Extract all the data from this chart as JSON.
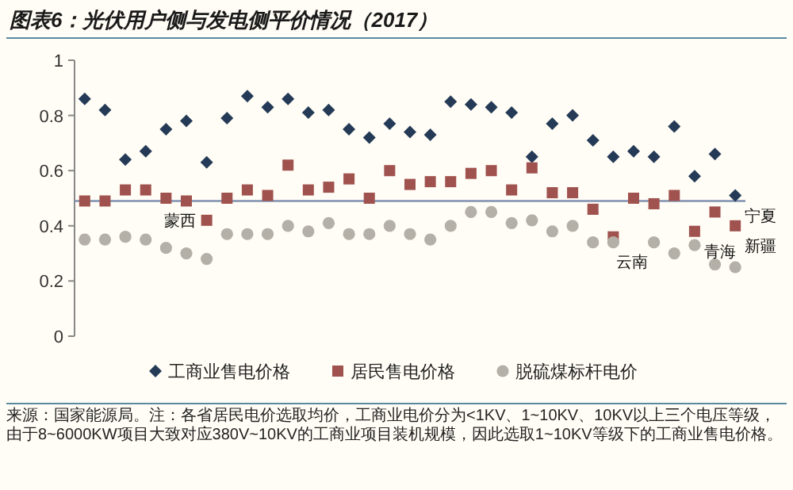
{
  "chart_data": {
    "type": "scatter",
    "title": "图表6：光伏用户侧与发电侧平价情况（2017）",
    "categories": [
      null,
      null,
      null,
      null,
      null,
      null,
      null,
      null,
      null,
      null,
      null,
      null,
      null,
      null,
      null,
      null,
      null,
      null,
      null,
      null,
      null,
      null,
      null,
      null,
      null,
      null,
      null,
      null,
      null,
      null,
      null,
      null,
      null
    ],
    "series": [
      {
        "name": "工商业售电价格",
        "color": "#243a56",
        "marker": "diamond",
        "values": [
          0.86,
          0.82,
          0.64,
          0.67,
          0.75,
          0.78,
          0.63,
          0.79,
          0.87,
          0.83,
          0.86,
          0.81,
          0.82,
          0.75,
          0.72,
          0.77,
          0.74,
          0.73,
          0.85,
          0.84,
          0.83,
          0.81,
          0.65,
          0.77,
          0.8,
          0.71,
          0.65,
          0.67,
          0.65,
          0.76,
          0.58,
          0.66,
          0.51
        ],
        "value_labels": [
          null,
          null,
          null,
          null,
          null,
          null,
          null,
          null,
          null,
          null,
          null,
          null,
          null,
          null,
          null,
          null,
          null,
          null,
          null,
          null,
          null,
          null,
          null,
          null,
          null,
          null,
          null,
          null,
          null,
          null,
          null,
          null,
          "宁夏"
        ]
      },
      {
        "name": "居民售电价格",
        "color": "#a0524f",
        "marker": "square",
        "values": [
          0.49,
          0.49,
          0.53,
          0.53,
          0.5,
          0.49,
          0.42,
          0.5,
          0.53,
          0.51,
          0.62,
          0.53,
          0.54,
          0.57,
          0.5,
          0.6,
          0.55,
          0.56,
          0.56,
          0.59,
          0.6,
          0.53,
          0.61,
          0.52,
          0.52,
          0.46,
          0.36,
          0.5,
          0.48,
          0.51,
          0.38,
          0.45,
          0.4
        ],
        "value_labels": [
          null,
          null,
          null,
          null,
          null,
          null,
          "蒙西",
          null,
          null,
          null,
          null,
          null,
          null,
          null,
          null,
          null,
          null,
          null,
          null,
          null,
          null,
          null,
          null,
          null,
          null,
          null,
          "云南",
          null,
          null,
          null,
          "青海",
          null,
          "新疆"
        ]
      },
      {
        "name": "脱硫煤标杆电价",
        "color": "#b4b0a8",
        "marker": "circle",
        "values": [
          0.35,
          0.35,
          0.36,
          0.35,
          0.32,
          0.3,
          0.28,
          0.37,
          0.37,
          0.37,
          0.4,
          0.38,
          0.41,
          0.37,
          0.37,
          0.4,
          0.37,
          0.35,
          0.4,
          0.45,
          0.45,
          0.41,
          0.42,
          0.38,
          0.4,
          0.34,
          0.34,
          null,
          0.34,
          0.3,
          0.33,
          0.26,
          0.25
        ]
      }
    ],
    "ylim": [
      0,
      1
    ],
    "yticks": [
      0,
      0.2,
      0.4,
      0.6,
      0.8,
      1
    ],
    "tick_labels": "y",
    "grid": false,
    "legend": "bottom",
    "ref_lines": [
      {
        "axis": "y",
        "value": 0.49,
        "color": "#8090b0"
      }
    ],
    "annotations": [
      "来源：国家能源局。注：各省居民电价选取均价，工商业电价分为<1KV、1~10KV、10KV以上三个电压等级，由于8~6000KW项目大致对应380V~10KV的工商业项目装机规模，因此选取1~10KV等级下的工商业售电价格。"
    ]
  }
}
